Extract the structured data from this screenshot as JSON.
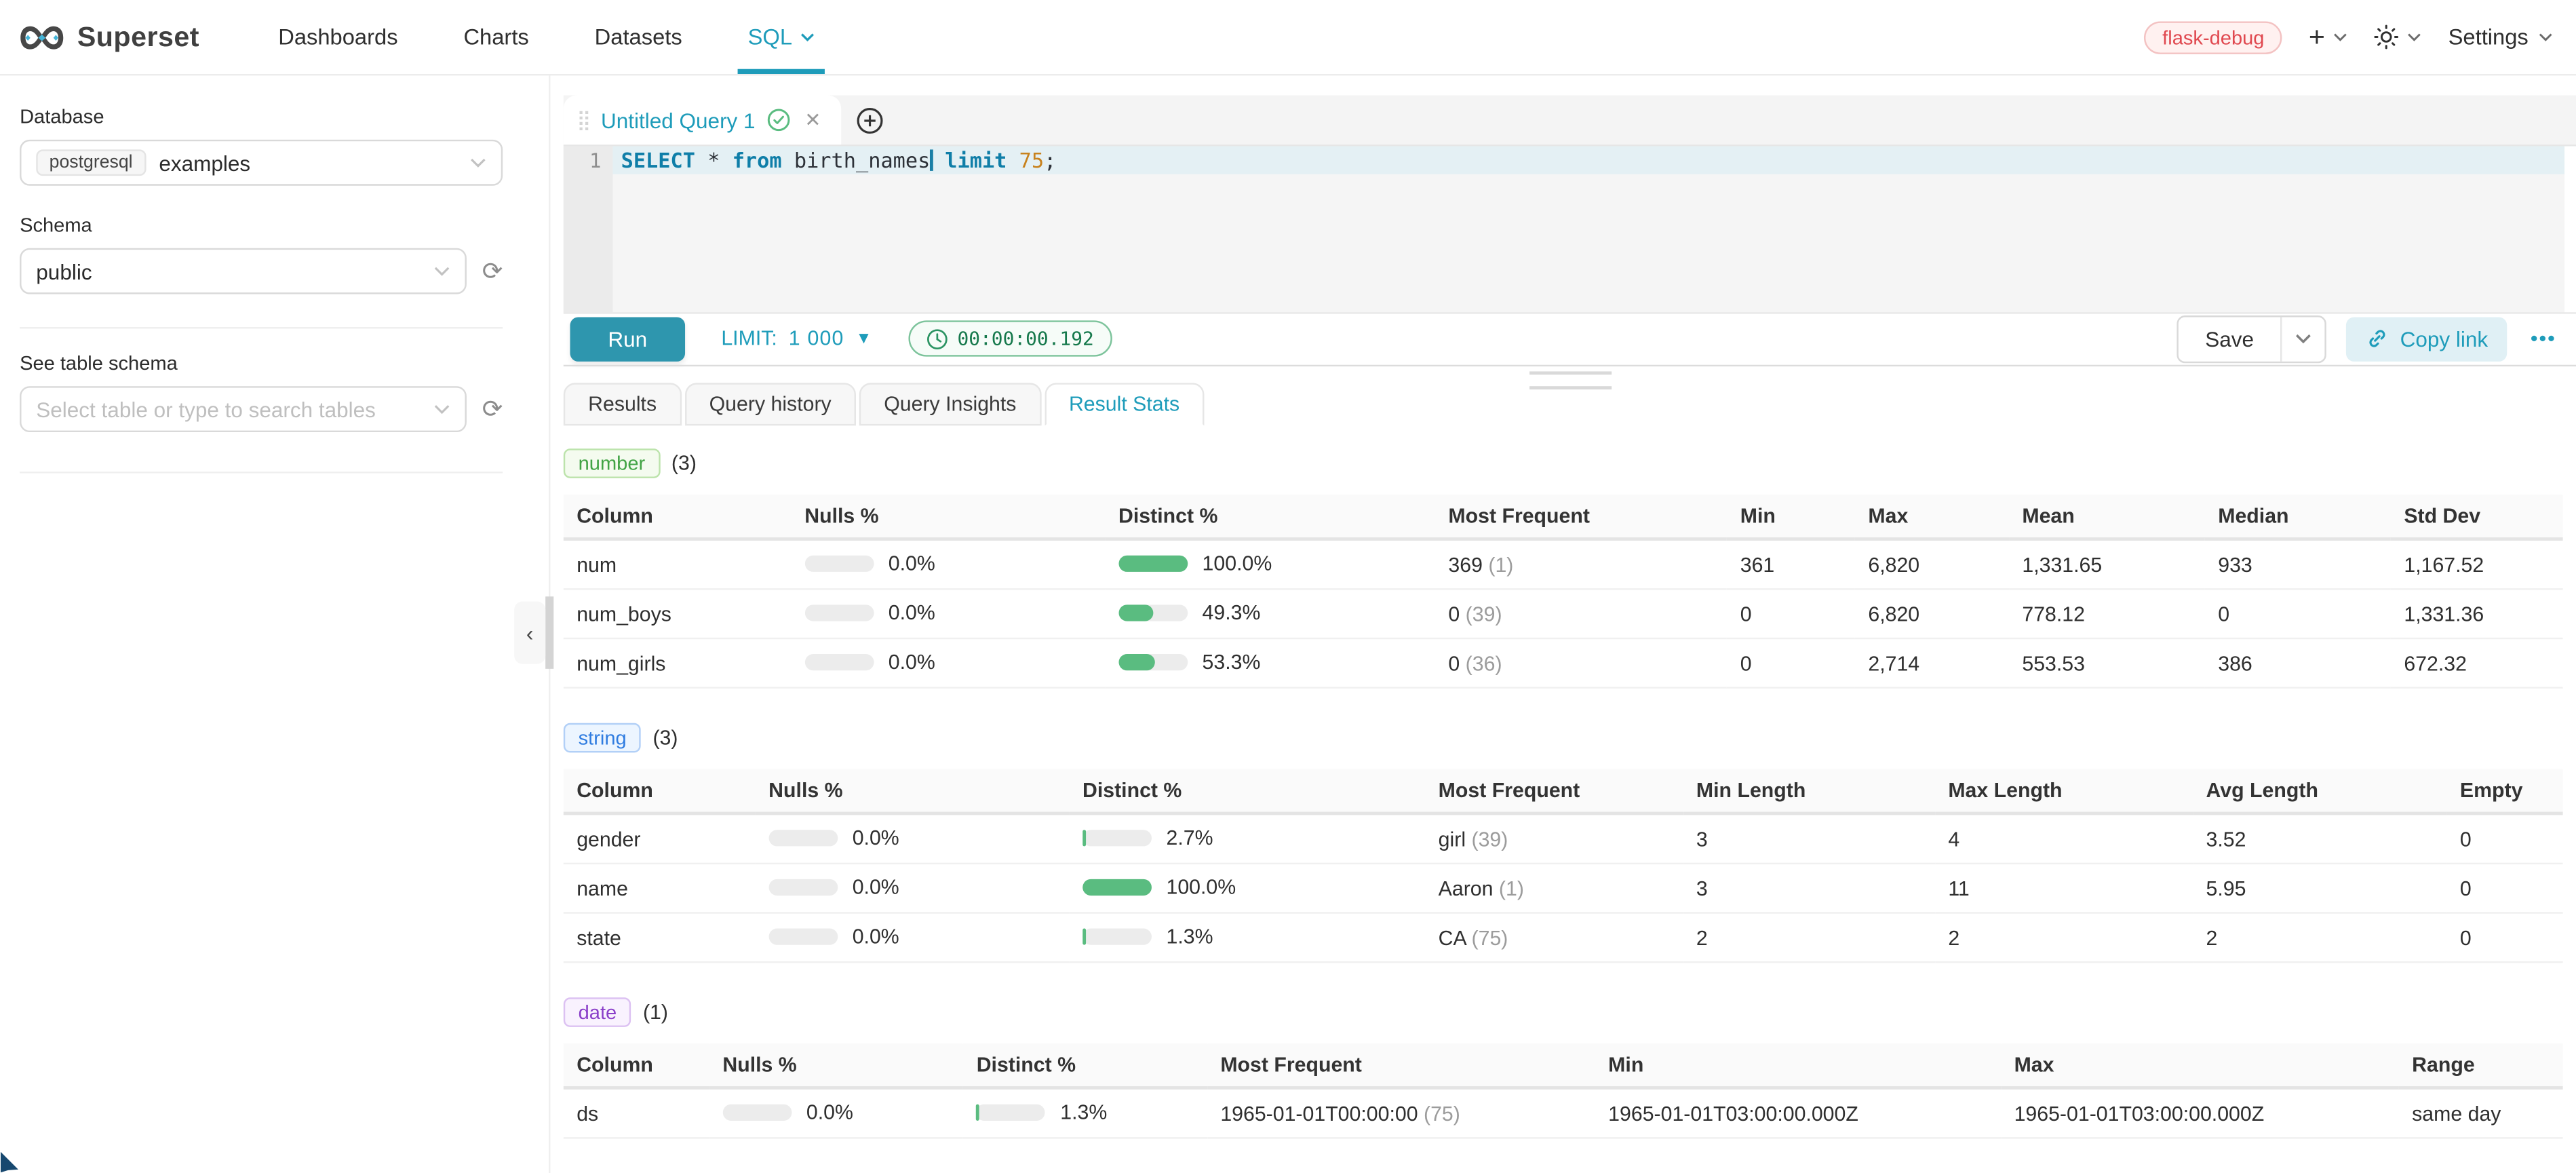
{
  "colors": {
    "accent": "#1e9cba",
    "run_button": "#2e96ae",
    "bar_green": "#5abc80",
    "timer_green": "#16794c",
    "env_red": "#e0484f"
  },
  "navbar": {
    "brand": "Superset",
    "items": [
      {
        "label": "Dashboards",
        "active": false,
        "caret": false
      },
      {
        "label": "Charts",
        "active": false,
        "caret": false
      },
      {
        "label": "Datasets",
        "active": false,
        "caret": false
      },
      {
        "label": "SQL",
        "active": true,
        "caret": true
      }
    ],
    "env_badge": "flask-debug",
    "settings_label": "Settings"
  },
  "sidebar": {
    "database_label": "Database",
    "database_type_tag": "postgresql",
    "database_value": "examples",
    "schema_label": "Schema",
    "schema_value": "public",
    "table_label": "See table schema",
    "table_placeholder": "Select table or type to search tables"
  },
  "editor": {
    "tab_title": "Untitled Query 1",
    "line_number": "1",
    "code_tokens": [
      {
        "text": "SELECT",
        "type": "kw"
      },
      {
        "text": " ",
        "type": "pl"
      },
      {
        "text": "*",
        "type": "pl"
      },
      {
        "text": " ",
        "type": "pl"
      },
      {
        "text": "from",
        "type": "kw"
      },
      {
        "text": " birth_names",
        "type": "pl"
      },
      {
        "type": "cursor"
      },
      {
        "text": " ",
        "type": "pl"
      },
      {
        "text": "limit",
        "type": "kw"
      },
      {
        "text": " ",
        "type": "pl"
      },
      {
        "text": "75",
        "type": "num"
      },
      {
        "text": ";",
        "type": "pl"
      }
    ],
    "run_label": "Run",
    "limit_label": "LIMIT:",
    "limit_value": "1 000",
    "timer_value": "00:00:00.192",
    "save_label": "Save",
    "copy_link_label": "Copy link",
    "more_label": "•••"
  },
  "results_tabs": [
    {
      "label": "Results",
      "active": false
    },
    {
      "label": "Query history",
      "active": false
    },
    {
      "label": "Query Insights",
      "active": false
    },
    {
      "label": "Result Stats",
      "active": true
    }
  ],
  "stats_sections": [
    {
      "badge": "number",
      "count": "(3)",
      "theme": "green",
      "columns": [
        "Column",
        "Nulls %",
        "Distinct %",
        "Most Frequent",
        "Min",
        "Max",
        "Mean",
        "Median",
        "Std Dev"
      ],
      "col_widths": [
        11.4,
        15.7,
        16.5,
        14.6,
        6.4,
        7.7,
        9.8,
        9.3,
        8.6
      ],
      "rows": [
        [
          {
            "text": "num"
          },
          {
            "bar": 0,
            "text": "0.0%"
          },
          {
            "bar": 100,
            "text": "100.0%"
          },
          {
            "text": "369",
            "note": "(1)"
          },
          {
            "text": "361"
          },
          {
            "text": "6,820"
          },
          {
            "text": "1,331.65"
          },
          {
            "text": "933"
          },
          {
            "text": "1,167.52"
          }
        ],
        [
          {
            "text": "num_boys"
          },
          {
            "bar": 0,
            "text": "0.0%"
          },
          {
            "bar": 49.3,
            "text": "49.3%"
          },
          {
            "text": "0",
            "note": "(39)"
          },
          {
            "text": "0"
          },
          {
            "text": "6,820"
          },
          {
            "text": "778.12"
          },
          {
            "text": "0"
          },
          {
            "text": "1,331.36"
          }
        ],
        [
          {
            "text": "num_girls"
          },
          {
            "bar": 0,
            "text": "0.0%"
          },
          {
            "bar": 53.3,
            "text": "53.3%"
          },
          {
            "text": "0",
            "note": "(36)"
          },
          {
            "text": "0"
          },
          {
            "text": "2,714"
          },
          {
            "text": "553.53"
          },
          {
            "text": "386"
          },
          {
            "text": "672.32"
          }
        ]
      ]
    },
    {
      "badge": "string",
      "count": "(3)",
      "theme": "blue",
      "columns": [
        "Column",
        "Nulls %",
        "Distinct %",
        "Most Frequent",
        "Min Length",
        "Max Length",
        "Avg Length",
        "Empty"
      ],
      "col_widths": [
        9.6,
        15.7,
        17.8,
        12.9,
        12.6,
        12.9,
        12.7,
        5.8
      ],
      "rows": [
        [
          {
            "text": "gender"
          },
          {
            "bar": 0,
            "text": "0.0%"
          },
          {
            "bar": 2.7,
            "text": "2.7%"
          },
          {
            "text": "girl",
            "note": "(39)"
          },
          {
            "text": "3"
          },
          {
            "text": "4"
          },
          {
            "text": "3.52"
          },
          {
            "text": "0"
          }
        ],
        [
          {
            "text": "name"
          },
          {
            "bar": 0,
            "text": "0.0%"
          },
          {
            "bar": 100,
            "text": "100.0%"
          },
          {
            "text": "Aaron",
            "note": "(1)"
          },
          {
            "text": "3"
          },
          {
            "text": "11"
          },
          {
            "text": "5.95"
          },
          {
            "text": "0"
          }
        ],
        [
          {
            "text": "state"
          },
          {
            "bar": 0,
            "text": "0.0%"
          },
          {
            "bar": 1.3,
            "text": "1.3%"
          },
          {
            "text": "CA",
            "note": "(75)"
          },
          {
            "text": "2"
          },
          {
            "text": "2"
          },
          {
            "text": "2"
          },
          {
            "text": "0"
          }
        ]
      ]
    },
    {
      "badge": "date",
      "count": "(1)",
      "theme": "purple",
      "columns": [
        "Column",
        "Nulls %",
        "Distinct %",
        "Most Frequent",
        "Min",
        "Max",
        "Range"
      ],
      "col_widths": [
        7.3,
        12.7,
        12.2,
        19.4,
        20.3,
        19.9,
        8.2
      ],
      "rows": [
        [
          {
            "text": "ds"
          },
          {
            "bar": 0,
            "text": "0.0%"
          },
          {
            "bar": 1.3,
            "text": "1.3%"
          },
          {
            "text": "1965-01-01T00:00:00",
            "note": "(75)"
          },
          {
            "text": "1965-01-01T03:00:00.000Z"
          },
          {
            "text": "1965-01-01T03:00:00.000Z"
          },
          {
            "text": "same day"
          }
        ]
      ]
    }
  ]
}
